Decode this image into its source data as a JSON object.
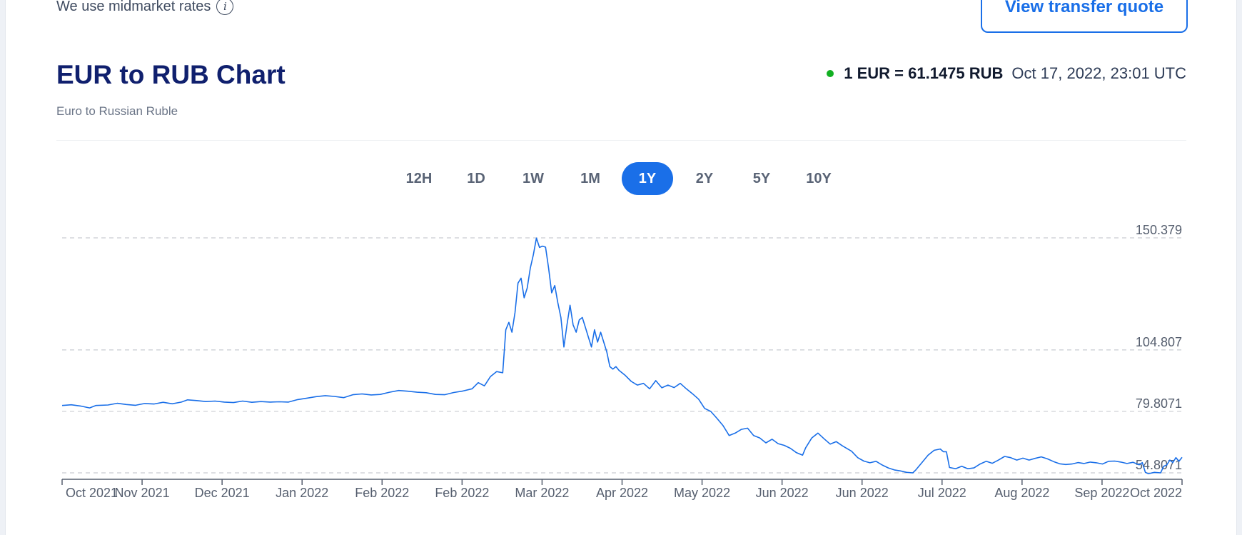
{
  "header": {
    "rates_note": "We use midmarket rates",
    "info_icon": "info-icon",
    "quote_button": "View transfer quote"
  },
  "title": "EUR to RUB Chart",
  "subtitle": "Euro to Russian Ruble",
  "rate": {
    "value": "1 EUR = 61.1475 RUB",
    "timestamp": "Oct 17, 2022, 23:01 UTC",
    "live_dot_color": "#12b022"
  },
  "tabs": [
    {
      "label": "12H",
      "active": false
    },
    {
      "label": "1D",
      "active": false
    },
    {
      "label": "1W",
      "active": false
    },
    {
      "label": "1M",
      "active": false
    },
    {
      "label": "1Y",
      "active": true
    },
    {
      "label": "2Y",
      "active": false
    },
    {
      "label": "5Y",
      "active": false
    },
    {
      "label": "10Y",
      "active": false
    }
  ],
  "colors": {
    "accent": "#1a6fe8",
    "title": "#10206e"
  },
  "chart_data": {
    "type": "line",
    "title": "",
    "xlabel": "",
    "ylabel": "",
    "grid": true,
    "y_gridlines": [
      150.379,
      104.807,
      79.8071,
      54.8071
    ],
    "y_gridline_labels": [
      "150.379",
      "104.807",
      "79.8071",
      "54.8071"
    ],
    "ylim": [
      54.8071,
      150.379
    ],
    "x_tick_labels": [
      "Oct 2021",
      "Nov 2021",
      "Dec 2021",
      "Jan 2022",
      "Feb 2022",
      "Feb 2022",
      "Mar 2022",
      "Apr 2022",
      "May 2022",
      "Jun 2022",
      "Jun 2022",
      "Jul 2022",
      "Aug 2022",
      "Sep 2022",
      "Oct 2022"
    ],
    "x_range_days": [
      0,
      366
    ],
    "series": [
      {
        "name": "",
        "color": "#1a6fe8",
        "points": [
          [
            0,
            82.2
          ],
          [
            3,
            82.5
          ],
          [
            6,
            82.0
          ],
          [
            9,
            81.2
          ],
          [
            11,
            82.2
          ],
          [
            15,
            82.4
          ],
          [
            18,
            83.1
          ],
          [
            21,
            82.6
          ],
          [
            24,
            82.3
          ],
          [
            27,
            83.0
          ],
          [
            30,
            82.8
          ],
          [
            33,
            83.5
          ],
          [
            36,
            82.9
          ],
          [
            39,
            83.6
          ],
          [
            41,
            84.5
          ],
          [
            44,
            84.2
          ],
          [
            47,
            83.8
          ],
          [
            50,
            84.0
          ],
          [
            53,
            83.6
          ],
          [
            56,
            83.4
          ],
          [
            59,
            84.0
          ],
          [
            62,
            83.5
          ],
          [
            65,
            83.8
          ],
          [
            68,
            83.6
          ],
          [
            71,
            83.7
          ],
          [
            74,
            83.6
          ],
          [
            77,
            84.6
          ],
          [
            80,
            85.2
          ],
          [
            83,
            85.8
          ],
          [
            86,
            86.2
          ],
          [
            89,
            85.9
          ],
          [
            92,
            85.4
          ],
          [
            95,
            86.6
          ],
          [
            98,
            86.9
          ],
          [
            101,
            86.5
          ],
          [
            104,
            86.7
          ],
          [
            107,
            87.6
          ],
          [
            110,
            88.3
          ],
          [
            113,
            88.0
          ],
          [
            116,
            87.6
          ],
          [
            119,
            87.4
          ],
          [
            122,
            86.7
          ],
          [
            125,
            86.6
          ],
          [
            128,
            87.5
          ],
          [
            131,
            88.1
          ],
          [
            134,
            89.0
          ],
          [
            136,
            91.5
          ],
          [
            138,
            90.2
          ],
          [
            140,
            94.0
          ],
          [
            142,
            96.0
          ],
          [
            144,
            95.5
          ],
          [
            145,
            113.0
          ],
          [
            146,
            116.0
          ],
          [
            147,
            112.0
          ],
          [
            148,
            120.0
          ],
          [
            149,
            132.0
          ],
          [
            150,
            134.0
          ],
          [
            151,
            126.0
          ],
          [
            152,
            130.0
          ],
          [
            153,
            138.0
          ],
          [
            154,
            143.5
          ],
          [
            155,
            150.3
          ],
          [
            156,
            146.5
          ],
          [
            157,
            147.0
          ],
          [
            158,
            146.6
          ],
          [
            159,
            138.0
          ],
          [
            160,
            128.0
          ],
          [
            161,
            131.0
          ],
          [
            162,
            124.0
          ],
          [
            163,
            118.0
          ],
          [
            164,
            106.0
          ],
          [
            165,
            115.0
          ],
          [
            166,
            123.0
          ],
          [
            167,
            115.0
          ],
          [
            168,
            112.0
          ],
          [
            169,
            117.0
          ],
          [
            170,
            118.0
          ],
          [
            171,
            114.0
          ],
          [
            172,
            110.0
          ],
          [
            173,
            106.0
          ],
          [
            174,
            113.0
          ],
          [
            175,
            108.0
          ],
          [
            176,
            112.0
          ],
          [
            177,
            108.0
          ],
          [
            178,
            104.0
          ],
          [
            179,
            98.0
          ],
          [
            180,
            97.0
          ],
          [
            181,
            98.0
          ],
          [
            182,
            96.5
          ],
          [
            184,
            94.5
          ],
          [
            186,
            92.0
          ],
          [
            188,
            90.5
          ],
          [
            190,
            91.2
          ],
          [
            192,
            89.0
          ],
          [
            194,
            92.3
          ],
          [
            196,
            89.4
          ],
          [
            198,
            90.5
          ],
          [
            200,
            89.5
          ],
          [
            202,
            91.2
          ],
          [
            204,
            89.0
          ],
          [
            206,
            87.0
          ],
          [
            208,
            84.8
          ],
          [
            210,
            81.0
          ],
          [
            212,
            79.8
          ],
          [
            214,
            77.0
          ],
          [
            216,
            74.0
          ],
          [
            218,
            70.0
          ],
          [
            220,
            71.0
          ],
          [
            222,
            72.5
          ],
          [
            224,
            73.0
          ],
          [
            226,
            70.0
          ],
          [
            228,
            69.0
          ],
          [
            230,
            67.0
          ],
          [
            232,
            68.5
          ],
          [
            234,
            66.7
          ],
          [
            236,
            66.0
          ],
          [
            238,
            64.8
          ],
          [
            240,
            63.0
          ],
          [
            242,
            62.0
          ],
          [
            243,
            65.0
          ],
          [
            245,
            69.0
          ],
          [
            247,
            71.0
          ],
          [
            249,
            68.7
          ],
          [
            251,
            66.5
          ],
          [
            253,
            67.5
          ],
          [
            255,
            65.8
          ],
          [
            258,
            63.6
          ],
          [
            260,
            61.0
          ],
          [
            262,
            59.6
          ],
          [
            264,
            58.9
          ],
          [
            266,
            59.5
          ],
          [
            268,
            58.0
          ],
          [
            270,
            56.8
          ],
          [
            272,
            56.0
          ],
          [
            274,
            55.6
          ],
          [
            276,
            55.0
          ],
          [
            278,
            54.8
          ],
          [
            279,
            56.0
          ],
          [
            281,
            59.0
          ],
          [
            283,
            62.0
          ],
          [
            285,
            64.0
          ],
          [
            287,
            64.5
          ],
          [
            288,
            63.4
          ],
          [
            289,
            63.4
          ],
          [
            290,
            57.0
          ],
          [
            292,
            56.5
          ],
          [
            294,
            57.5
          ],
          [
            296,
            56.5
          ],
          [
            298,
            56.8
          ],
          [
            300,
            58.4
          ],
          [
            302,
            59.5
          ],
          [
            304,
            58.7
          ],
          [
            306,
            60.0
          ],
          [
            308,
            61.5
          ],
          [
            310,
            61.0
          ],
          [
            312,
            60.0
          ],
          [
            314,
            60.8
          ],
          [
            316,
            60.0
          ],
          [
            318,
            60.7
          ],
          [
            320,
            61.3
          ],
          [
            322,
            60.5
          ],
          [
            324,
            59.4
          ],
          [
            326,
            58.5
          ],
          [
            328,
            58.2
          ],
          [
            330,
            58.4
          ],
          [
            332,
            59.0
          ],
          [
            334,
            58.6
          ],
          [
            336,
            59.2
          ],
          [
            338,
            58.9
          ],
          [
            340,
            58.4
          ],
          [
            342,
            59.5
          ],
          [
            344,
            59.6
          ],
          [
            346,
            59.2
          ],
          [
            348,
            58.6
          ],
          [
            350,
            59.1
          ],
          [
            352,
            58.1
          ],
          [
            353,
            59.0
          ],
          [
            354,
            55.0
          ],
          [
            355,
            54.5
          ],
          [
            357,
            55.0
          ],
          [
            359,
            54.8
          ],
          [
            360,
            57.5
          ],
          [
            361,
            58.0
          ],
          [
            362,
            60.0
          ],
          [
            363,
            59.0
          ],
          [
            364,
            61.0
          ],
          [
            365,
            59.5
          ],
          [
            366,
            61.1
          ]
        ]
      }
    ]
  }
}
